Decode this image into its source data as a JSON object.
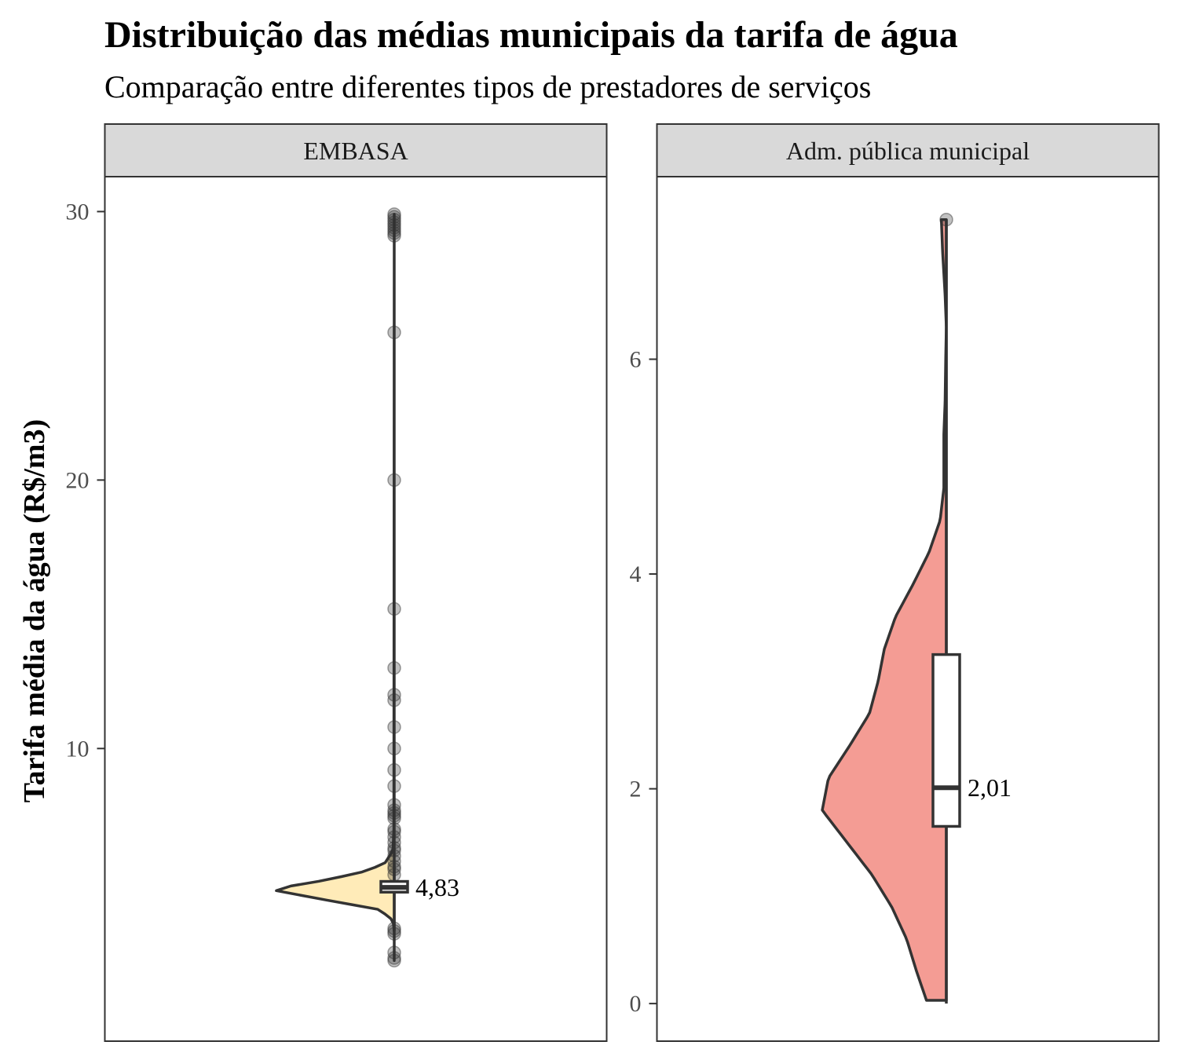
{
  "chart_data": {
    "type": "violin",
    "title": "Distribuição das médias municipais da tarifa de água",
    "subtitle": "Comparação entre diferentes tipos de prestadores de serviços",
    "ylabel": "Tarifa média da água (R$/m3)",
    "xlabel": "",
    "grid": false,
    "panels": [
      {
        "strip_label": "EMBASA",
        "fill_color": "#FFEBB8",
        "ylim": [
          -0.9,
          31.3
        ],
        "yticks": [
          10,
          20,
          30
        ],
        "ytick_labels": [
          "10",
          "20",
          "30"
        ],
        "median": 4.83,
        "median_label": "4,83",
        "q1": 4.65,
        "q3": 5.05,
        "whisker_low": 3.2,
        "whisker_high": 5.7,
        "violin_range": [
          2.1,
          29.9
        ],
        "density_profile": [
          [
            2.1,
            0.0
          ],
          [
            3.2,
            0.0
          ],
          [
            3.6,
            0.01
          ],
          [
            4.0,
            0.12
          ],
          [
            4.4,
            0.6
          ],
          [
            4.75,
            1.0
          ],
          [
            5.1,
            0.55
          ],
          [
            5.4,
            0.26
          ],
          [
            5.7,
            0.08
          ],
          [
            6.2,
            0.01
          ],
          [
            7.0,
            0.003
          ],
          [
            29.9,
            0.0
          ]
        ],
        "points": [
          29.9,
          29.8,
          29.7,
          29.6,
          29.5,
          29.4,
          29.3,
          29.2,
          29.1,
          25.5,
          20.0,
          15.2,
          13.0,
          12.0,
          11.8,
          10.8,
          10.0,
          9.2,
          8.6,
          7.9,
          7.7,
          7.6,
          7.5,
          7.4,
          7.0,
          6.9,
          6.7,
          6.5,
          6.3,
          6.2,
          6.0,
          5.8,
          5.6,
          5.5,
          5.3,
          3.3,
          3.2,
          3.1,
          2.4,
          2.2,
          2.1
        ]
      },
      {
        "strip_label": "Adm. pública municipal",
        "fill_color": "#F49C94",
        "ylim": [
          -0.35,
          7.7
        ],
        "yticks": [
          0,
          2,
          4,
          6
        ],
        "ytick_labels": [
          "0",
          "2",
          "4",
          "6"
        ],
        "median": 2.01,
        "median_label": "2,01",
        "q1": 1.65,
        "q3": 3.25,
        "whisker_low": 0.0,
        "whisker_high": 7.3,
        "violin_range": [
          0.03,
          7.3
        ],
        "density_profile": [
          [
            0.03,
            0.16
          ],
          [
            0.3,
            0.24
          ],
          [
            0.6,
            0.32
          ],
          [
            0.9,
            0.44
          ],
          [
            1.2,
            0.6
          ],
          [
            1.5,
            0.8
          ],
          [
            1.8,
            1.0
          ],
          [
            2.1,
            0.95
          ],
          [
            2.4,
            0.78
          ],
          [
            2.7,
            0.62
          ],
          [
            3.0,
            0.55
          ],
          [
            3.3,
            0.5
          ],
          [
            3.6,
            0.41
          ],
          [
            3.9,
            0.27
          ],
          [
            4.2,
            0.14
          ],
          [
            4.5,
            0.05
          ],
          [
            4.8,
            0.02
          ],
          [
            5.3,
            0.02
          ],
          [
            5.6,
            0.01
          ],
          [
            6.0,
            0.005
          ],
          [
            6.3,
            0.0
          ],
          [
            6.6,
            0.01
          ],
          [
            7.0,
            0.03
          ],
          [
            7.3,
            0.04
          ]
        ],
        "points": [
          7.3
        ]
      }
    ]
  }
}
